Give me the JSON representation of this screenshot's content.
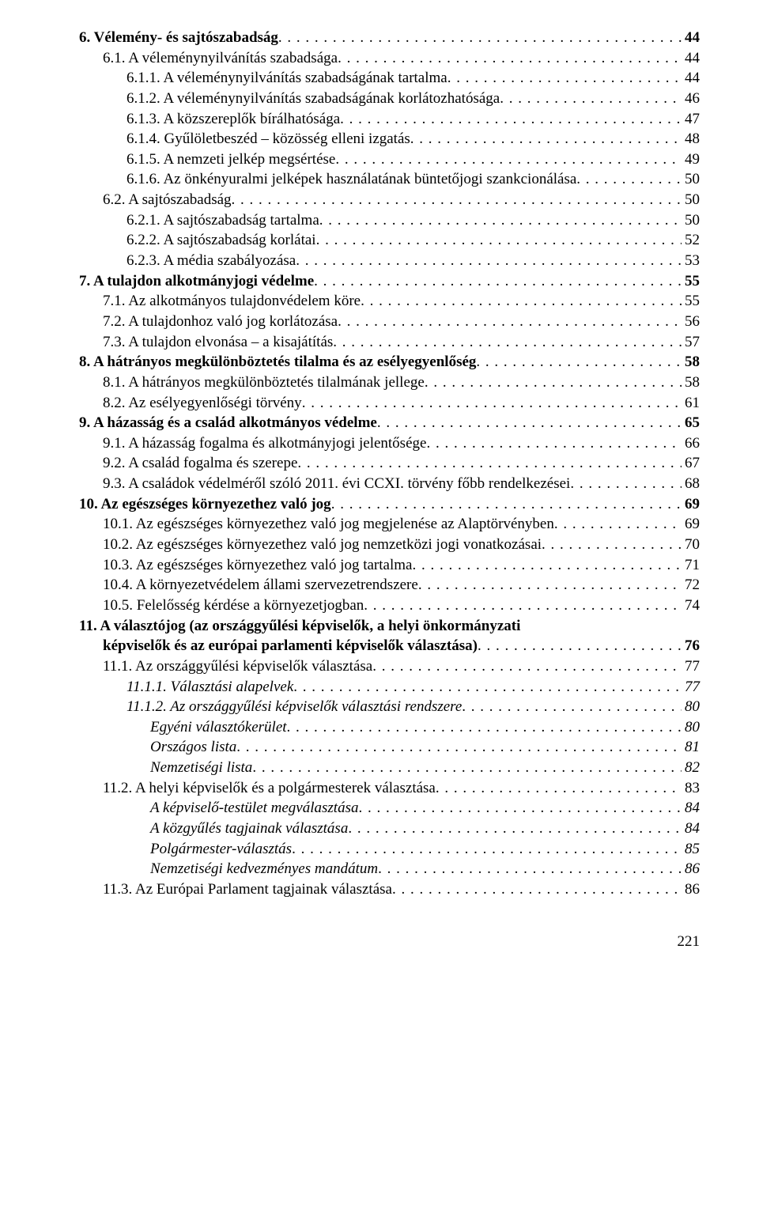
{
  "pageNumber": "221",
  "entries": [
    {
      "text": "6. Vélemény- és sajtószabadság",
      "page": "44",
      "indent": 0,
      "bold": true,
      "italic": false
    },
    {
      "text": "6.1. A véleménynyilvánítás szabadsága",
      "page": "44",
      "indent": 1,
      "bold": false,
      "italic": false
    },
    {
      "text": "6.1.1. A véleménynyilvánítás szabadságának tartalma",
      "page": "44",
      "indent": 2,
      "bold": false,
      "italic": false
    },
    {
      "text": "6.1.2. A véleménynyilvánítás szabadságának korlátozhatósága",
      "page": "46",
      "indent": 2,
      "bold": false,
      "italic": false
    },
    {
      "text": "6.1.3. A közszereplők bírálhatósága",
      "page": "47",
      "indent": 2,
      "bold": false,
      "italic": false
    },
    {
      "text": "6.1.4. Gyűlöletbeszéd – közösség elleni izgatás",
      "page": "48",
      "indent": 2,
      "bold": false,
      "italic": false
    },
    {
      "text": "6.1.5. A nemzeti jelkép megsértése",
      "page": "49",
      "indent": 2,
      "bold": false,
      "italic": false
    },
    {
      "text": "6.1.6. Az önkényuralmi jelképek használatának büntetőjogi szankcionálása",
      "page": "50",
      "indent": 2,
      "bold": false,
      "italic": false
    },
    {
      "text": "6.2. A sajtószabadság",
      "page": "50",
      "indent": 1,
      "bold": false,
      "italic": false
    },
    {
      "text": "6.2.1. A sajtószabadság tartalma",
      "page": "50",
      "indent": 2,
      "bold": false,
      "italic": false
    },
    {
      "text": "6.2.2. A sajtószabadság korlátai",
      "page": "52",
      "indent": 2,
      "bold": false,
      "italic": false
    },
    {
      "text": "6.2.3. A média szabályozása",
      "page": "53",
      "indent": 2,
      "bold": false,
      "italic": false
    },
    {
      "text": "7. A tulajdon alkotmányjogi védelme",
      "page": "55",
      "indent": 0,
      "bold": true,
      "italic": false
    },
    {
      "text": "7.1. Az alkotmányos tulajdonvédelem köre",
      "page": "55",
      "indent": 1,
      "bold": false,
      "italic": false
    },
    {
      "text": "7.2. A tulajdonhoz való jog korlátozása",
      "page": "56",
      "indent": 1,
      "bold": false,
      "italic": false
    },
    {
      "text": "7.3. A tulajdon elvonása – a kisajátítás",
      "page": "57",
      "indent": 1,
      "bold": false,
      "italic": false
    },
    {
      "text": "8. A hátrányos megkülönböztetés tilalma és az esélyegyenlőség",
      "page": "58",
      "indent": 0,
      "bold": true,
      "italic": false
    },
    {
      "text": "8.1. A hátrányos megkülönböztetés tilalmának jellege",
      "page": "58",
      "indent": 1,
      "bold": false,
      "italic": false
    },
    {
      "text": "8.2. Az esélyegyenlőségi törvény",
      "page": "61",
      "indent": 1,
      "bold": false,
      "italic": false
    },
    {
      "text": "9. A házasság és a család alkotmányos védelme",
      "page": "65",
      "indent": 0,
      "bold": true,
      "italic": false
    },
    {
      "text": "9.1. A házasság fogalma és alkotmányjogi jelentősége",
      "page": "66",
      "indent": 1,
      "bold": false,
      "italic": false
    },
    {
      "text": "9.2. A család fogalma és szerepe",
      "page": "67",
      "indent": 1,
      "bold": false,
      "italic": false
    },
    {
      "text": "9.3. A családok védelméről szóló 2011. évi CCXI. törvény főbb rendelkezései",
      "page": "68",
      "indent": 1,
      "bold": false,
      "italic": false
    },
    {
      "text": "10. Az egészséges környezethez való jog",
      "page": "69",
      "indent": 0,
      "bold": true,
      "italic": false
    },
    {
      "text": "10.1. Az egészséges környezethez való jog megjelenése az Alaptörvényben",
      "page": "69",
      "indent": 1,
      "bold": false,
      "italic": false
    },
    {
      "text": "10.2. Az egészséges környezethez való jog nemzetközi jogi vonatkozásai",
      "page": "70",
      "indent": 1,
      "bold": false,
      "italic": false
    },
    {
      "text": "10.3. Az egészséges környezethez való jog tartalma",
      "page": "71",
      "indent": 1,
      "bold": false,
      "italic": false
    },
    {
      "text": "10.4. A környezetvédelem állami szervezetrendszere",
      "page": "72",
      "indent": 1,
      "bold": false,
      "italic": false
    },
    {
      "text": "10.5. Felelősség kérdése a környezetjogban",
      "page": "74",
      "indent": 1,
      "bold": false,
      "italic": false
    },
    {
      "text": "11. A választójog (az országgyűlési képviselők, a helyi önkormányzati",
      "cont": "képviselők és az európai parlamenti képviselők választása)",
      "page": "76",
      "indent": 0,
      "bold": true,
      "italic": false
    },
    {
      "text": "11.1. Az országgyűlési képviselők választása",
      "page": "77",
      "indent": 1,
      "bold": false,
      "italic": false
    },
    {
      "text": "11.1.1. Választási alapelvek",
      "page": "77",
      "indent": 2,
      "bold": false,
      "italic": true
    },
    {
      "text": "11.1.2. Az országgyűlési képviselők választási rendszere",
      "page": "80",
      "indent": 2,
      "bold": false,
      "italic": true
    },
    {
      "text": "Egyéni választókerület",
      "page": "80",
      "indent": 3,
      "bold": false,
      "italic": true
    },
    {
      "text": "Országos lista",
      "page": "81",
      "indent": 3,
      "bold": false,
      "italic": true
    },
    {
      "text": "Nemzetiségi lista",
      "page": "82",
      "indent": 3,
      "bold": false,
      "italic": true
    },
    {
      "text": "11.2. A helyi képviselők és a polgármesterek választása",
      "page": "83",
      "indent": 1,
      "bold": false,
      "italic": false
    },
    {
      "text": "A képviselő-testület megválasztása",
      "page": "84",
      "indent": 3,
      "bold": false,
      "italic": true
    },
    {
      "text": "A közgyűlés tagjainak választása",
      "page": "84",
      "indent": 3,
      "bold": false,
      "italic": true
    },
    {
      "text": "Polgármester-választás",
      "page": "85",
      "indent": 3,
      "bold": false,
      "italic": true
    },
    {
      "text": "Nemzetiségi kedvezményes mandátum",
      "page": "86",
      "indent": 3,
      "bold": false,
      "italic": true
    },
    {
      "text": "11.3. Az Európai Parlament tagjainak választása",
      "page": "86",
      "indent": 1,
      "bold": false,
      "italic": false
    }
  ]
}
